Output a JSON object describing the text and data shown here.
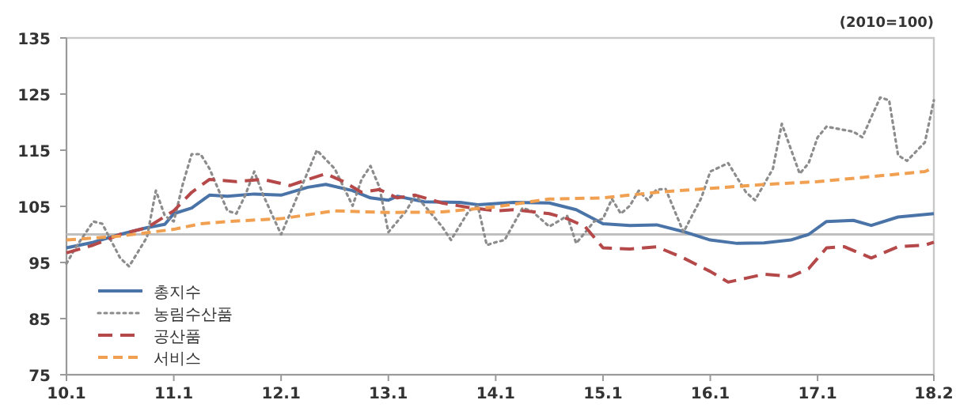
{
  "chart_data": {
    "type": "line",
    "xlim": [
      "2010-01",
      "2018-02"
    ],
    "ylim": [
      75,
      135
    ],
    "xticks": [
      {
        "value": "2010-01",
        "label": "10.1"
      },
      {
        "value": "2011-01",
        "label": "11.1"
      },
      {
        "value": "2012-01",
        "label": "12.1"
      },
      {
        "value": "2013-01",
        "label": "13.1"
      },
      {
        "value": "2014-01",
        "label": "14.1"
      },
      {
        "value": "2015-01",
        "label": "15.1"
      },
      {
        "value": "2016-01",
        "label": "16.1"
      },
      {
        "value": "2017-01",
        "label": "17.1"
      },
      {
        "value": "2018-02",
        "label": "18.2"
      }
    ],
    "yticks": [
      75,
      85,
      95,
      105,
      115,
      125,
      135
    ],
    "grid": false,
    "legend": "bottom left",
    "annotations": [
      "(2010=100)"
    ],
    "ref_lines": [
      {
        "axis": "y",
        "value": 100,
        "color": "#bfbfbf"
      }
    ],
    "series": [
      {
        "name": "총지수",
        "color": "#4a74a8",
        "line_style": "solid",
        "x": [
          "2010-01",
          "2010-04",
          "2010-07",
          "2010-10",
          "2010-12",
          "2011-01",
          "2011-03",
          "2011-05",
          "2011-07",
          "2011-10",
          "2012-01",
          "2012-04",
          "2012-06",
          "2012-09",
          "2012-11",
          "2013-01",
          "2013-02",
          "2013-05",
          "2013-09",
          "2013-11",
          "2014-01",
          "2014-03",
          "2014-07",
          "2014-10",
          "2015-01",
          "2015-04",
          "2015-07",
          "2015-10",
          "2016-01",
          "2016-04",
          "2016-07",
          "2016-10",
          "2016-12",
          "2017-02",
          "2017-05",
          "2017-07",
          "2017-10",
          "2018-02"
        ],
        "values": [
          97.6,
          98.6,
          100,
          101.2,
          101.8,
          103.7,
          104.7,
          107,
          106.8,
          107.2,
          107,
          108.4,
          108.9,
          107.8,
          106.5,
          106.1,
          106.8,
          105.8,
          105.7,
          105.3,
          105.5,
          105.7,
          105.6,
          104.4,
          101.9,
          101.6,
          101.7,
          100.5,
          99,
          98.4,
          98.5,
          99,
          100,
          102.3,
          102.5,
          101.6,
          103.1,
          103.7
        ]
      },
      {
        "name": "농림수산품",
        "color": "#8c8c8c",
        "line_style": "dotted",
        "x": [
          "2010-01",
          "2010-02",
          "2010-04",
          "2010-05",
          "2010-07",
          "2010-08",
          "2010-10",
          "2010-11",
          "2010-12",
          "2011-01",
          "2011-02",
          "2011-03",
          "2011-04",
          "2011-05",
          "2011-07",
          "2011-08",
          "2011-09",
          "2011-10",
          "2011-11",
          "2012-01",
          "2012-02",
          "2012-04",
          "2012-05",
          "2012-07",
          "2012-08",
          "2012-09",
          "2012-10",
          "2012-11",
          "2012-12",
          "2013-01",
          "2013-03",
          "2013-04",
          "2013-05",
          "2013-07",
          "2013-08",
          "2013-10",
          "2013-11",
          "2013-12",
          "2014-01",
          "2014-02",
          "2014-04",
          "2014-05",
          "2014-07",
          "2014-09",
          "2014-10",
          "2014-12",
          "2015-01",
          "2015-02",
          "2015-03",
          "2015-04",
          "2015-05",
          "2015-06",
          "2015-07",
          "2015-08",
          "2015-10",
          "2015-12",
          "2016-01",
          "2016-03",
          "2016-05",
          "2016-06",
          "2016-08",
          "2016-09",
          "2016-11",
          "2016-12",
          "2017-01",
          "2017-02",
          "2017-05",
          "2017-06",
          "2017-08",
          "2017-09",
          "2017-10",
          "2017-11",
          "2018-01",
          "2018-02"
        ],
        "values": [
          94.8,
          97.6,
          102.3,
          101.9,
          95.8,
          94.3,
          99.5,
          107.8,
          103.3,
          102.3,
          108.9,
          114.3,
          114.3,
          111.7,
          104.2,
          103.7,
          107,
          111.2,
          107,
          100,
          103.7,
          111.2,
          115,
          111.7,
          108.4,
          105.1,
          109.8,
          112.2,
          108.4,
          100.4,
          104.2,
          107,
          105.2,
          101.4,
          99,
          104.2,
          105.1,
          98.1,
          98.6,
          99,
          104.7,
          104.2,
          101.4,
          103.3,
          98.4,
          102.3,
          102.8,
          106.3,
          103.7,
          105.1,
          107.8,
          106.1,
          108,
          108.1,
          100.4,
          106.5,
          111.2,
          112.7,
          107.5,
          106.1,
          111.7,
          119.7,
          110.8,
          112.7,
          117.3,
          119.2,
          118.3,
          117.3,
          124.4,
          123.9,
          114.1,
          113.1,
          116.4,
          123.9
        ]
      },
      {
        "name": "공산품",
        "color": "#b5494a",
        "line_style": "dashed",
        "x": [
          "2010-01",
          "2010-04",
          "2010-07",
          "2010-10",
          "2011-01",
          "2011-03",
          "2011-05",
          "2011-08",
          "2011-11",
          "2012-02",
          "2012-04",
          "2012-06",
          "2012-08",
          "2012-10",
          "2012-12",
          "2013-02",
          "2013-04",
          "2013-07",
          "2013-10",
          "2014-01",
          "2014-03",
          "2014-07",
          "2014-09",
          "2014-11",
          "2015-01",
          "2015-04",
          "2015-07",
          "2015-10",
          "2016-01",
          "2016-03",
          "2016-05",
          "2016-07",
          "2016-10",
          "2016-12",
          "2017-02",
          "2017-04",
          "2017-07",
          "2017-10",
          "2018-01",
          "2018-02"
        ],
        "values": [
          96.7,
          98.1,
          100,
          101.2,
          104.2,
          107.5,
          109.8,
          109.4,
          109.8,
          108.7,
          109.8,
          110.8,
          109.4,
          107.5,
          108,
          106.5,
          107,
          105.6,
          104.8,
          104.2,
          104.4,
          103.7,
          102.8,
          101.4,
          97.6,
          97.4,
          97.8,
          95.8,
          93.4,
          91.5,
          92.2,
          92.9,
          92.5,
          93.9,
          97.6,
          97.8,
          95.8,
          97.8,
          98.1,
          98.6
        ]
      },
      {
        "name": "서비스",
        "color": "#f0a050",
        "line_style": "dashed",
        "x": [
          "2010-01",
          "2010-07",
          "2011-01",
          "2011-04",
          "2011-07",
          "2012-01",
          "2012-07",
          "2013-01",
          "2013-07",
          "2014-01",
          "2014-07",
          "2015-01",
          "2015-07",
          "2016-01",
          "2016-07",
          "2017-01",
          "2017-07",
          "2018-01",
          "2018-02"
        ],
        "values": [
          99,
          99.7,
          100.9,
          101.9,
          102.3,
          102.8,
          104.2,
          103.9,
          104,
          104.9,
          106.3,
          106.5,
          107.5,
          108.2,
          108.9,
          109.4,
          110.3,
          111.2,
          111.9
        ]
      }
    ]
  }
}
